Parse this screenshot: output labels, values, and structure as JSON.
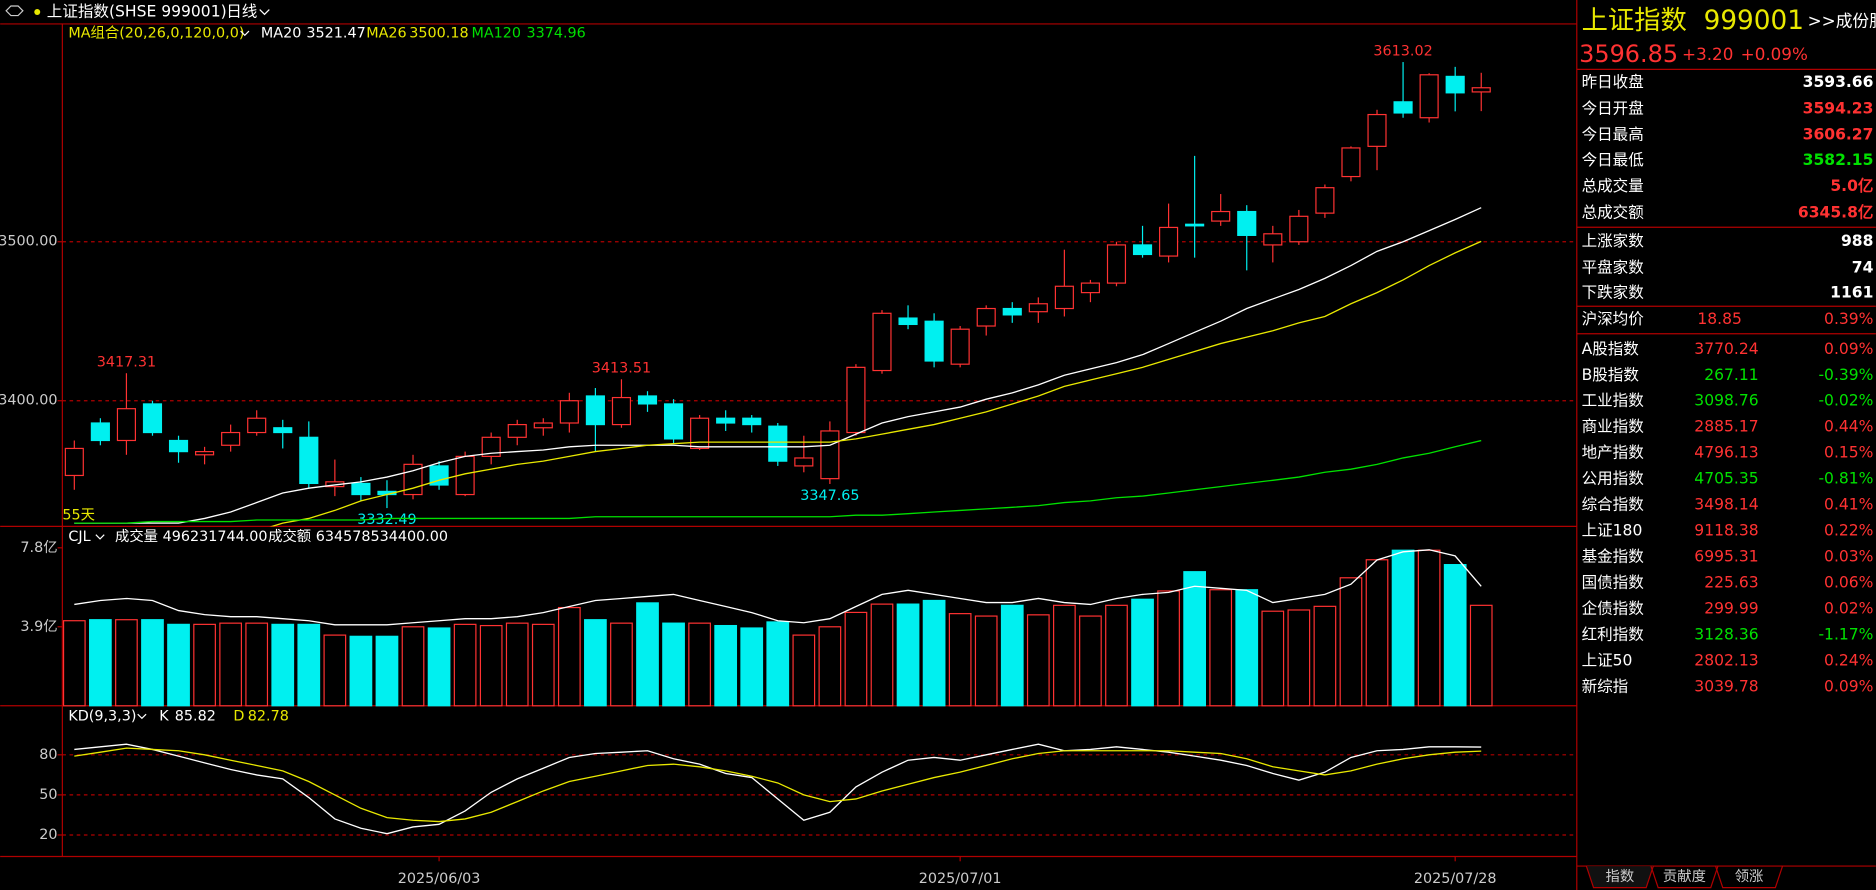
{
  "header": {
    "title": "上证指数(SHSE 999001)",
    "period": "日线"
  },
  "chart_data": [
    {
      "type": "candlestick",
      "legend_title": "MA组合(20,26,0,120,0,0)",
      "period_label": "55天",
      "up_color": "#ff3232",
      "down_color": "#00f0f0",
      "categories": [
        null,
        null,
        null,
        null,
        null,
        null,
        null,
        null,
        null,
        null,
        null,
        null,
        null,
        null,
        "2025/06/03",
        null,
        null,
        null,
        null,
        null,
        null,
        null,
        null,
        null,
        null,
        null,
        null,
        null,
        null,
        null,
        null,
        null,
        null,
        null,
        "2025/07/01",
        null,
        null,
        null,
        null,
        null,
        null,
        null,
        null,
        null,
        null,
        null,
        null,
        null,
        null,
        null,
        null,
        null,
        null,
        "2025/07/28",
        null
      ],
      "open": [
        3353,
        3386,
        3375,
        3398,
        3375,
        3366,
        3372,
        3380,
        3383,
        3377,
        3346,
        3348,
        3343,
        3341,
        3359,
        3341,
        3365,
        3377,
        3383,
        3386,
        3403,
        3385,
        3403,
        3398,
        3370,
        3389,
        3389,
        3384,
        3359,
        3351,
        3380,
        3419,
        3452,
        3450,
        3423,
        3447,
        3458,
        3456,
        3458,
        3468,
        3474,
        3498,
        3491,
        3511,
        3513,
        3519,
        3498,
        3500,
        3518,
        3541,
        3560,
        3588,
        3578,
        3604,
        3594.23
      ],
      "high": [
        3375,
        3389,
        3417.31,
        3400,
        3378,
        3371,
        3385,
        3394,
        3388,
        3387,
        3363,
        3352,
        3350,
        3366,
        3362,
        3368,
        3380,
        3388,
        3389,
        3405,
        3408,
        3413.51,
        3406,
        3401,
        3391,
        3394,
        3391,
        3386,
        3378,
        3387,
        3423,
        3457,
        3460,
        3455,
        3447,
        3460,
        3462,
        3465,
        3495,
        3476,
        3500,
        3510,
        3524,
        3554,
        3530,
        3523,
        3510,
        3520,
        3536,
        3560,
        3583,
        3613.02,
        3606,
        3610,
        3606.27
      ],
      "low": [
        3344,
        3372,
        3366,
        3378,
        3361,
        3360,
        3368,
        3378,
        3370,
        3345,
        3340,
        3337,
        3332.49,
        3338,
        3344,
        3340,
        3360,
        3372,
        3378,
        3380,
        3368,
        3383,
        3393,
        3373,
        3369,
        3381,
        3380,
        3359,
        3355,
        3347.65,
        3378,
        3417,
        3445,
        3421,
        3421,
        3441,
        3449,
        3449,
        3453,
        3462,
        3472,
        3490,
        3487,
        3490,
        3510,
        3482,
        3487,
        3498,
        3515,
        3538,
        3545,
        3578,
        3575,
        3582,
        3582.15
      ],
      "close": [
        3370,
        3375,
        3395,
        3380,
        3368,
        3368,
        3380,
        3389,
        3380,
        3348,
        3349,
        3341,
        3341,
        3360,
        3347,
        3365,
        3377,
        3385,
        3386,
        3400,
        3385,
        3402,
        3398,
        3376,
        3389,
        3386,
        3385,
        3362,
        3364,
        3381,
        3421,
        3455,
        3448,
        3425,
        3445,
        3458,
        3454,
        3461,
        3472,
        3474,
        3498,
        3492,
        3509,
        3510,
        3519,
        3504,
        3505,
        3516,
        3534,
        3559,
        3580,
        3581,
        3605,
        3593.66,
        3596.85
      ],
      "series": [
        {
          "name": "MA20",
          "color": "#ffffff",
          "values": [
            3323,
            3323,
            3323,
            3323,
            3323,
            3326,
            3330,
            3336,
            3342,
            3345,
            3347,
            3349,
            3352,
            3356,
            3361,
            3365,
            3367,
            3368,
            3369,
            3371,
            3372,
            3372,
            3372,
            3372,
            3371,
            3371,
            3371,
            3371,
            3371,
            3372,
            3379,
            3386,
            3390,
            3393,
            3396,
            3401,
            3405,
            3410,
            3416,
            3420,
            3424,
            3429,
            3436,
            3443,
            3450,
            3458,
            3464,
            3470,
            3477,
            3485,
            3494,
            3500,
            3507,
            3514,
            3521.47
          ]
        },
        {
          "name": "MA26",
          "color": "#e8e800",
          "values": [
            null,
            null,
            null,
            null,
            null,
            null,
            null,
            3318,
            3323,
            3326,
            3331,
            3337,
            3341,
            3345,
            3350,
            3354,
            3357,
            3360,
            3362,
            3365,
            3368,
            3370,
            3372,
            3373,
            3374,
            3374,
            3374,
            3374,
            3374,
            3374,
            3376,
            3379,
            3382,
            3385,
            3389,
            3393,
            3398,
            3403,
            3409,
            3413,
            3417,
            3421,
            3426,
            3431,
            3436,
            3440,
            3444,
            3449,
            3453,
            3461,
            3468,
            3476,
            3485,
            3493,
            3500.18
          ]
        },
        {
          "name": "MA120",
          "color": "#00e000",
          "values": [
            3323,
            3323,
            3323,
            3324,
            3324,
            3324,
            3324,
            3325,
            3325,
            3325,
            3325,
            3325,
            3326,
            3326,
            3326,
            3326,
            3326,
            3326,
            3326,
            3326,
            3327,
            3327,
            3327,
            3327,
            3327,
            3327,
            3327,
            3327,
            3327,
            3327,
            3328,
            3328,
            3329,
            3330,
            3331,
            3332,
            3333,
            3334,
            3336,
            3337,
            3339,
            3340,
            3342,
            3344,
            3346,
            3348,
            3350,
            3352,
            3355,
            3357,
            3360,
            3364,
            3367,
            3371,
            3374.96
          ]
        }
      ],
      "ylim": [
        3321,
        3637
      ],
      "yticks": [
        {
          "value": 3400,
          "label": "3400.00"
        },
        {
          "value": 3500,
          "label": "3500.00"
        }
      ],
      "grid": true
    },
    {
      "type": "bar",
      "name": "CJL",
      "volume_label": "成交量 496231744.00",
      "amount_label": "成交额 634578534400.00",
      "values": [
        4.2,
        4.25,
        4.25,
        4.25,
        4.02,
        4.02,
        4.08,
        4.08,
        4.02,
        4.02,
        3.49,
        3.43,
        3.43,
        3.9,
        3.84,
        4.02,
        3.96,
        4.08,
        4.02,
        4.85,
        4.25,
        4.08,
        5.08,
        4.08,
        4.08,
        3.96,
        3.84,
        4.14,
        3.49,
        3.9,
        4.61,
        5.02,
        5.02,
        5.2,
        4.55,
        4.43,
        4.96,
        4.49,
        4.96,
        4.43,
        4.96,
        5.26,
        5.67,
        6.62,
        5.73,
        5.73,
        4.67,
        4.73,
        4.91,
        6.32,
        7.21,
        7.68,
        7.68,
        6.97,
        4.96
      ],
      "line": {
        "color": "#ffffff",
        "values": [
          5.0,
          5.2,
          5.3,
          5.2,
          4.7,
          4.5,
          4.4,
          4.4,
          4.3,
          4.2,
          4.0,
          4.0,
          4.0,
          4.1,
          4.2,
          4.3,
          4.3,
          4.4,
          4.6,
          4.9,
          5.2,
          5.3,
          5.4,
          5.5,
          5.2,
          4.9,
          4.6,
          4.2,
          4.1,
          4.3,
          4.9,
          5.5,
          5.7,
          5.5,
          5.3,
          5.1,
          5.1,
          5.3,
          5.1,
          5.0,
          5.3,
          5.5,
          5.6,
          5.9,
          5.8,
          5.7,
          5.1,
          5.3,
          5.5,
          6.0,
          7.2,
          7.6,
          7.7,
          7.4,
          5.9
        ]
      },
      "ylim": [
        0,
        8.86
      ],
      "yticks": [
        {
          "value": 3.9,
          "label": "3.9亿"
        },
        {
          "value": 7.8,
          "label": "7.8亿"
        }
      ],
      "grid": false
    },
    {
      "type": "line",
      "title": "KD(9,3,3)",
      "series": [
        {
          "name": "K",
          "color": "#ffffff",
          "values": [
            84,
            86,
            88,
            84,
            79,
            74,
            69,
            65,
            62,
            48,
            32,
            25,
            21,
            26,
            28,
            38,
            52,
            62,
            70,
            78,
            81,
            82,
            83,
            77,
            73,
            66,
            63,
            47,
            31,
            37,
            56,
            67,
            76,
            78,
            76,
            80,
            84,
            88,
            83,
            84,
            86,
            84,
            82,
            79,
            76,
            72,
            66,
            61,
            67,
            78,
            83,
            84,
            86,
            86,
            85.82
          ]
        },
        {
          "name": "D",
          "color": "#e8e800",
          "values": [
            79,
            82,
            85,
            84,
            83,
            80,
            76,
            72,
            68,
            60,
            50,
            40,
            33,
            31,
            30,
            32,
            37,
            45,
            53,
            60,
            64,
            68,
            72,
            73,
            71,
            68,
            64,
            59,
            50,
            45,
            47,
            53,
            58,
            63,
            67,
            72,
            77,
            81,
            83,
            83,
            83,
            83,
            83,
            82,
            81,
            77,
            71,
            68,
            65,
            68,
            73,
            77,
            80,
            82,
            82.78
          ]
        }
      ],
      "ylim": [
        3.9,
        116.7
      ],
      "yticks": [
        20,
        50,
        80
      ],
      "grid": true
    }
  ],
  "quote": {
    "name": "上证指数",
    "code": "999001",
    "link": ">>成份股",
    "price": 3596.85,
    "change": "+3.20",
    "change_pct": "+0.09%"
  },
  "stats": [
    {
      "label": "昨日收盘",
      "value": 3593.66,
      "color": "#ffffff"
    },
    {
      "label": "今日开盘",
      "value": 3594.23,
      "color": "#ff3232"
    },
    {
      "label": "今日最高",
      "value": 3606.27,
      "color": "#ff3232"
    },
    {
      "label": "今日最低",
      "value": 3582.15,
      "color": "#00e000"
    },
    {
      "label": "总成交量",
      "value": "5.0亿",
      "color": "#ff3232"
    },
    {
      "label": "总成交额",
      "value": "6345.8亿",
      "color": "#ff3232"
    },
    {
      "label": "上涨家数",
      "value": 988,
      "color": "#ffffff"
    },
    {
      "label": "平盘家数",
      "value": 74,
      "color": "#ffffff"
    },
    {
      "label": "下跌家数",
      "value": 1161,
      "color": "#ffffff"
    }
  ],
  "average": {
    "label": "沪深均价",
    "value": 18.85,
    "change": "0.39%",
    "color": "#ff3232"
  },
  "indices": [
    {
      "name": "A股指数",
      "value": 3770.24,
      "change": "0.09%",
      "color": "#ff3232"
    },
    {
      "name": "B股指数",
      "value": 267.11,
      "change": "-0.39%",
      "color": "#00e000"
    },
    {
      "name": "工业指数",
      "value": 3098.76,
      "change": "-0.02%",
      "color": "#00e000"
    },
    {
      "name": "商业指数",
      "value": 2885.17,
      "change": "0.44%",
      "color": "#ff3232"
    },
    {
      "name": "地产指数",
      "value": 4796.13,
      "change": "0.15%",
      "color": "#ff3232"
    },
    {
      "name": "公用指数",
      "value": 4705.35,
      "change": "-0.81%",
      "color": "#00e000"
    },
    {
      "name": "综合指数",
      "value": 3498.14,
      "change": "0.41%",
      "color": "#ff3232"
    },
    {
      "name": "上证180",
      "value": 9118.38,
      "change": "0.22%",
      "color": "#ff3232"
    },
    {
      "name": "基金指数",
      "value": 6995.31,
      "change": "0.03%",
      "color": "#ff3232"
    },
    {
      "name": "国债指数",
      "value": 225.63,
      "change": "0.06%",
      "color": "#ff3232"
    },
    {
      "name": "企债指数",
      "value": 299.99,
      "change": "0.02%",
      "color": "#ff3232"
    },
    {
      "name": "红利指数",
      "value": 3128.36,
      "change": "-1.17%",
      "color": "#00e000"
    },
    {
      "name": "上证50",
      "value": 2802.13,
      "change": "0.24%",
      "color": "#ff3232"
    },
    {
      "name": "新综指",
      "value": 3039.78,
      "change": "0.09%",
      "color": "#ff3232"
    }
  ],
  "tabs": [
    "指数",
    "贡献度",
    "领涨"
  ]
}
